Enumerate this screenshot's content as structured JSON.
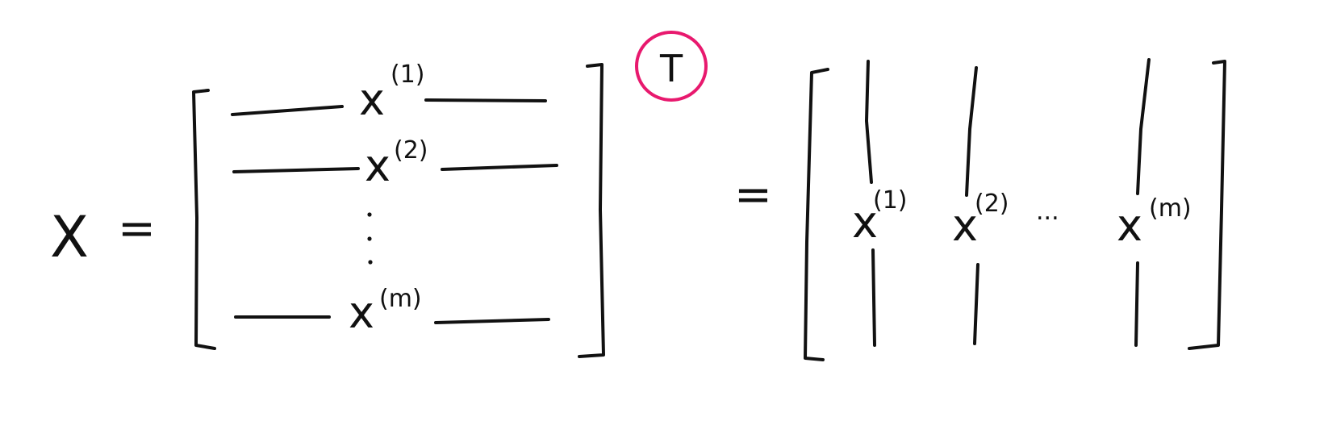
{
  "title": "",
  "colors": {
    "ink": "#111111",
    "accent": "#e8196e",
    "background": "#ffffff"
  },
  "lhs": {
    "symbol": "X",
    "equals": "="
  },
  "left_matrix": {
    "rows": [
      {
        "var": "x",
        "index": "(1)"
      },
      {
        "var": "x",
        "index": "(2)"
      },
      {
        "var": "x",
        "index": "(m)"
      }
    ],
    "vertical_dots": "⋮",
    "transpose_mark": "T"
  },
  "rhs": {
    "equals": "=",
    "columns": [
      {
        "var": "x",
        "index": "(1)"
      },
      {
        "var": "x",
        "index": "(2)"
      },
      {
        "var": "x",
        "index": "(m)"
      }
    ],
    "horizontal_dots": "..."
  }
}
